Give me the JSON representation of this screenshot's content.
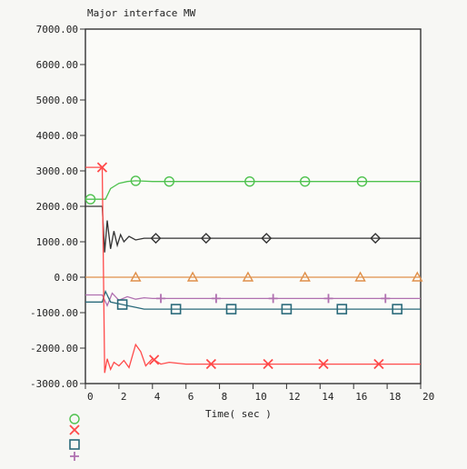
{
  "chart_data": {
    "type": "line",
    "title": "Major interface MW",
    "xlabel": "Time( sec )",
    "ylabel": "",
    "xlim": [
      0,
      20
    ],
    "ylim": [
      -3000,
      7000
    ],
    "grid": true,
    "x_ticks": [
      "0",
      "2",
      "4",
      "6",
      "8",
      "10",
      "12",
      "14",
      "16",
      "18",
      "20"
    ],
    "y_ticks": [
      "7000.00",
      "6000.00",
      "5000.00",
      "4000.00",
      "3000.00",
      "2000.00",
      "1000.00",
      "0.00",
      "-1000.00",
      "-2000.00",
      "-3000.00"
    ],
    "series": [
      {
        "color": "#4fc24f",
        "marker": "circle",
        "x": [
          0,
          0.5,
          1.0,
          1.2,
          1.5,
          2.0,
          2.5,
          3.0,
          4,
          6,
          8,
          10,
          12,
          14,
          16,
          18,
          20
        ],
        "y": [
          2200,
          2200,
          2200,
          2200,
          2500,
          2650,
          2700,
          2720,
          2700,
          2700,
          2700,
          2700,
          2700,
          2700,
          2700,
          2700,
          2700
        ]
      },
      {
        "color": "#333333",
        "marker": "diamond",
        "x": [
          0,
          0.5,
          1.0,
          1.15,
          1.3,
          1.5,
          1.7,
          1.9,
          2.1,
          2.3,
          2.6,
          3.0,
          3.5,
          4,
          6,
          8,
          10,
          12,
          14,
          16,
          18,
          20
        ],
        "y": [
          2000,
          2000,
          2000,
          700,
          1600,
          800,
          1300,
          900,
          1200,
          1000,
          1150,
          1050,
          1100,
          1100,
          1100,
          1100,
          1100,
          1100,
          1100,
          1100,
          1100,
          1100
        ]
      },
      {
        "color": "#e0904a",
        "marker": "triangle",
        "x": [
          0,
          0.5,
          1.0,
          2,
          4,
          6,
          8,
          10,
          12,
          14,
          16,
          18,
          20
        ],
        "y": [
          0,
          0,
          0,
          0,
          0,
          0,
          0,
          0,
          0,
          0,
          0,
          0,
          0
        ]
      },
      {
        "color": "#b070b0",
        "marker": "plus",
        "x": [
          0,
          0.5,
          1.0,
          1.3,
          1.6,
          2.0,
          2.5,
          3.0,
          3.5,
          4,
          6,
          8,
          10,
          12,
          14,
          16,
          18,
          20
        ],
        "y": [
          -500,
          -500,
          -500,
          -800,
          -450,
          -650,
          -550,
          -620,
          -580,
          -600,
          -600,
          -600,
          -600,
          -600,
          -600,
          -600,
          -600,
          -600
        ]
      },
      {
        "color": "#2a6a7a",
        "marker": "square",
        "x": [
          0,
          0.5,
          1.0,
          1.2,
          1.5,
          2.0,
          2.5,
          3.0,
          3.5,
          4,
          6,
          8,
          10,
          12,
          14,
          16,
          18,
          20
        ],
        "y": [
          -700,
          -700,
          -700,
          -400,
          -700,
          -750,
          -800,
          -850,
          -900,
          -900,
          -900,
          -900,
          -900,
          -900,
          -900,
          -900,
          -900,
          -900
        ]
      },
      {
        "color": "#ff4a4a",
        "marker": "x",
        "x": [
          0,
          0.5,
          1.0,
          1.15,
          1.3,
          1.5,
          1.7,
          2.0,
          2.3,
          2.6,
          3.0,
          3.3,
          3.6,
          4.0,
          4.5,
          5,
          6,
          8,
          10,
          12,
          14,
          16,
          18,
          20
        ],
        "y": [
          3100,
          3100,
          3100,
          -2700,
          -2300,
          -2600,
          -2400,
          -2500,
          -2350,
          -2550,
          -1900,
          -2100,
          -2500,
          -2300,
          -2450,
          -2400,
          -2450,
          -2450,
          -2450,
          -2450,
          -2450,
          -2450,
          -2450,
          -2450
        ]
      }
    ],
    "marker_positions": {
      "circle": [
        0.3,
        3.0,
        5.0,
        9.8,
        13.1,
        16.5
      ],
      "diamond": [
        4.2,
        7.2,
        10.8,
        17.3
      ],
      "triangle": [
        3.0,
        6.4,
        9.7,
        13.1,
        16.4,
        19.8
      ],
      "plus": [
        4.5,
        7.8,
        11.2,
        14.5,
        17.9
      ],
      "square": [
        2.2,
        5.4,
        8.7,
        12.0,
        15.3,
        18.6
      ],
      "x": [
        1.0,
        4.1,
        7.5,
        10.9,
        14.2,
        17.5
      ]
    }
  }
}
